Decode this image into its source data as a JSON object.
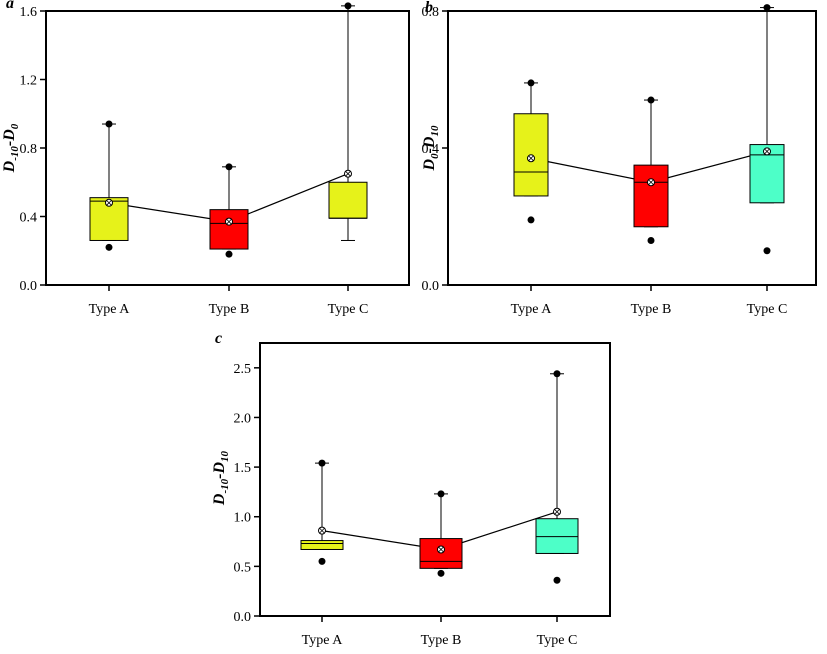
{
  "chart_data": [
    {
      "panel": "a",
      "type": "box",
      "ylabel": {
        "main": "D",
        "sub1": "-10",
        "mid": "-D",
        "sub2": "0"
      },
      "ylim": [
        0.0,
        1.6
      ],
      "yticks": [
        0.0,
        0.4,
        0.8,
        1.2,
        1.6
      ],
      "ytick_labels": [
        "0.0",
        "0.4",
        "0.8",
        "1.2",
        "1.6"
      ],
      "categories": [
        "Type A",
        "Type B",
        "Type C"
      ],
      "boxes": [
        {
          "q1": 0.26,
          "median": 0.49,
          "q3": 0.51,
          "mean": 0.48,
          "min": 0.26,
          "max": 0.94,
          "outliers": [
            0.22
          ],
          "color": "#e6f21a"
        },
        {
          "q1": 0.21,
          "median": 0.36,
          "q3": 0.44,
          "mean": 0.37,
          "min": 0.21,
          "max": 0.69,
          "outliers": [
            0.18
          ],
          "color": "#ff0000"
        },
        {
          "q1": 0.39,
          "median": 0.39,
          "q3": 0.6,
          "mean": 0.65,
          "min": 0.26,
          "max": 1.63,
          "outliers": [],
          "color": "#e6f21a"
        }
      ]
    },
    {
      "panel": "b",
      "type": "box",
      "ylabel": {
        "main": "D",
        "sub1": "0",
        "mid": "-D",
        "sub2": "10"
      },
      "ylim": [
        0.0,
        0.8
      ],
      "yticks": [
        0.0,
        0.4,
        0.8
      ],
      "ytick_labels": [
        "0.0",
        "0.4",
        "0.8"
      ],
      "categories": [
        "Type A",
        "Type B",
        "Type C"
      ],
      "boxes": [
        {
          "q1": 0.26,
          "median": 0.33,
          "q3": 0.5,
          "mean": 0.37,
          "min": 0.26,
          "max": 0.59,
          "outliers": [
            0.19
          ],
          "color": "#e6f21a"
        },
        {
          "q1": 0.17,
          "median": 0.3,
          "q3": 0.35,
          "mean": 0.3,
          "min": 0.17,
          "max": 0.54,
          "outliers": [
            0.13
          ],
          "color": "#ff0000"
        },
        {
          "q1": 0.24,
          "median": 0.38,
          "q3": 0.41,
          "mean": 0.39,
          "min": 0.24,
          "max": 0.81,
          "outliers": [
            0.1
          ],
          "color": "#4dffc8"
        }
      ]
    },
    {
      "panel": "c",
      "type": "box",
      "ylabel": {
        "main": "D",
        "sub1": "-10",
        "mid": "-D",
        "sub2": "10"
      },
      "ylim": [
        0.0,
        2.75
      ],
      "yticks": [
        0.0,
        0.5,
        1.0,
        1.5,
        2.0,
        2.5
      ],
      "ytick_labels": [
        "0.0",
        "0.5",
        "1.0",
        "1.5",
        "2.0",
        "2.5"
      ],
      "categories": [
        "Type A",
        "Type B",
        "Type C"
      ],
      "boxes": [
        {
          "q1": 0.67,
          "median": 0.73,
          "q3": 0.76,
          "mean": 0.86,
          "min": 0.67,
          "max": 1.54,
          "outliers": [
            0.55
          ],
          "color": "#e6f21a"
        },
        {
          "q1": 0.48,
          "median": 0.55,
          "q3": 0.78,
          "mean": 0.67,
          "min": 0.48,
          "max": 1.23,
          "outliers": [
            0.43
          ],
          "color": "#ff0000"
        },
        {
          "q1": 0.63,
          "median": 0.8,
          "q3": 0.98,
          "mean": 1.05,
          "min": 0.63,
          "max": 2.44,
          "outliers": [
            0.36
          ],
          "color": "#4dffc8"
        }
      ]
    }
  ]
}
